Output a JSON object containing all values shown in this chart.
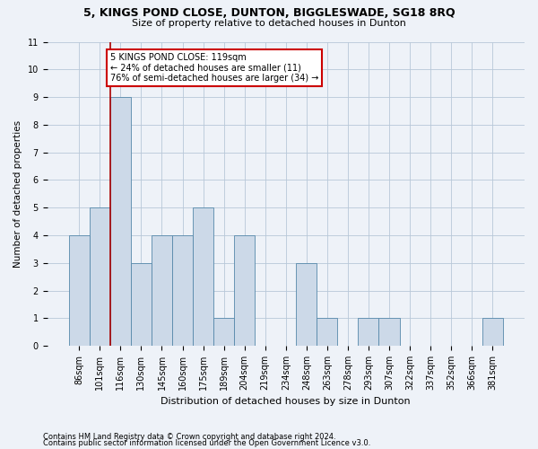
{
  "title": "5, KINGS POND CLOSE, DUNTON, BIGGLESWADE, SG18 8RQ",
  "subtitle": "Size of property relative to detached houses in Dunton",
  "xlabel": "Distribution of detached houses by size in Dunton",
  "ylabel": "Number of detached properties",
  "categories": [
    "86sqm",
    "101sqm",
    "116sqm",
    "130sqm",
    "145sqm",
    "160sqm",
    "175sqm",
    "189sqm",
    "204sqm",
    "219sqm",
    "234sqm",
    "248sqm",
    "263sqm",
    "278sqm",
    "293sqm",
    "307sqm",
    "322sqm",
    "337sqm",
    "352sqm",
    "366sqm",
    "381sqm"
  ],
  "values": [
    4,
    5,
    9,
    3,
    4,
    4,
    5,
    1,
    4,
    0,
    0,
    3,
    1,
    0,
    1,
    1,
    0,
    0,
    0,
    0,
    1
  ],
  "bar_color": "#ccd9e8",
  "bar_edge_color": "#5588aa",
  "vline_color": "#aa0000",
  "vline_x_index": 2,
  "annotation_text": "5 KINGS POND CLOSE: 119sqm\n← 24% of detached houses are smaller (11)\n76% of semi-detached houses are larger (34) →",
  "annotation_box_facecolor": "white",
  "annotation_box_edgecolor": "#cc0000",
  "ylim": [
    0,
    11
  ],
  "yticks": [
    0,
    1,
    2,
    3,
    4,
    5,
    6,
    7,
    8,
    9,
    10,
    11
  ],
  "footer1": "Contains HM Land Registry data © Crown copyright and database right 2024.",
  "footer2": "Contains public sector information licensed under the Open Government Licence v3.0.",
  "bg_color": "#eef2f8",
  "plot_bg_color": "#eef2f8",
  "grid_color": "#b8c8d8",
  "title_fontsize": 9,
  "subtitle_fontsize": 8,
  "xlabel_fontsize": 8,
  "ylabel_fontsize": 7.5,
  "tick_fontsize": 7,
  "footer_fontsize": 6
}
